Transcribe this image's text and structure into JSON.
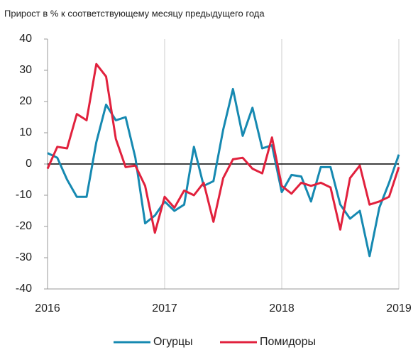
{
  "chart_data": {
    "type": "line",
    "title": "Прирост в % к соответствующему месяцу предыдущего года",
    "categories": [
      "2016",
      null,
      null,
      null,
      null,
      null,
      null,
      null,
      null,
      null,
      null,
      null,
      "2017",
      null,
      null,
      null,
      null,
      null,
      null,
      null,
      null,
      null,
      null,
      null,
      "2018",
      null,
      null,
      null,
      null,
      null,
      null,
      null,
      null,
      null,
      null,
      null,
      "2019"
    ],
    "series": [
      {
        "name": "Огурцы",
        "color": "#1689b1",
        "values": [
          3.5,
          2,
          -5,
          -10.5,
          -10.5,
          7,
          19,
          14,
          15,
          2,
          -19,
          -16.5,
          -12,
          -15,
          -13,
          5.5,
          -7,
          -5.5,
          11,
          24,
          9,
          18,
          5,
          6,
          -9,
          -3.5,
          -4,
          -12,
          -1,
          -1,
          -13,
          -17.5,
          -15,
          -29.5,
          -14,
          -6,
          3
        ]
      },
      {
        "name": "Помидоры",
        "color": "#e1213d",
        "values": [
          -1.5,
          5.5,
          5,
          16,
          14,
          32,
          28,
          8,
          -1,
          -0.5,
          -7,
          -22,
          -10.5,
          -14,
          -8.5,
          -10,
          -6,
          -18.5,
          -4.5,
          1.5,
          2,
          -1.5,
          -3,
          8.5,
          -7,
          -9.5,
          -6,
          -7,
          -6,
          -7.5,
          -21,
          -4.5,
          -0.5,
          -13,
          -12,
          -10.5,
          -1
        ]
      }
    ],
    "ylim": [
      -40,
      40
    ],
    "yticks": [
      -40,
      -30,
      -20,
      -10,
      0,
      10,
      20,
      30,
      40
    ],
    "grid": false,
    "legend": "bottom"
  }
}
